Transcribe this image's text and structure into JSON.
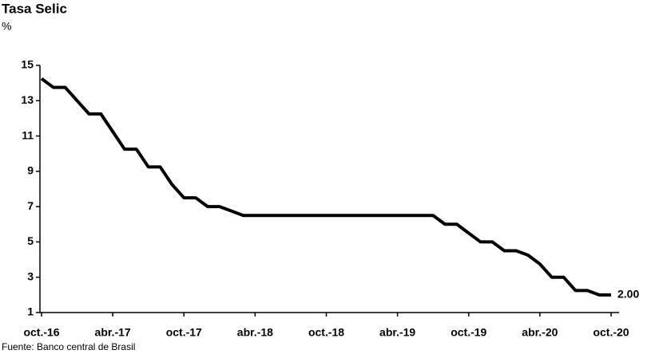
{
  "chart_data": {
    "type": "line",
    "title": "Tasa Selic",
    "y_label": "%",
    "source": "Fuente: Banco central de Brasil",
    "categories": [
      "oct.-16",
      null,
      null,
      null,
      null,
      null,
      "abr.-17",
      null,
      null,
      null,
      null,
      null,
      "oct.-17",
      null,
      null,
      null,
      null,
      null,
      "abr.-18",
      null,
      null,
      null,
      null,
      null,
      "oct.-18",
      null,
      null,
      null,
      null,
      null,
      "abr.-19",
      null,
      null,
      null,
      null,
      null,
      "oct.-19",
      null,
      null,
      null,
      null,
      null,
      "abr.-20",
      null,
      null,
      null,
      null,
      null,
      "oct.-20"
    ],
    "series": [
      {
        "name": "Tasa Selic",
        "color": "#000000",
        "values": [
          14.25,
          13.75,
          13.75,
          13.0,
          12.25,
          12.25,
          11.25,
          10.25,
          10.25,
          9.25,
          9.25,
          8.25,
          7.5,
          7.5,
          7.0,
          7.0,
          6.75,
          6.5,
          6.5,
          6.5,
          6.5,
          6.5,
          6.5,
          6.5,
          6.5,
          6.5,
          6.5,
          6.5,
          6.5,
          6.5,
          6.5,
          6.5,
          6.5,
          6.5,
          6.0,
          6.0,
          5.5,
          5.0,
          5.0,
          4.5,
          4.5,
          4.25,
          3.75,
          3.0,
          3.0,
          2.25,
          2.25,
          2.0,
          2.0
        ],
        "value_labels": [
          null,
          null,
          null,
          null,
          null,
          null,
          null,
          null,
          null,
          null,
          null,
          null,
          null,
          null,
          null,
          null,
          null,
          null,
          null,
          null,
          null,
          null,
          null,
          null,
          null,
          null,
          null,
          null,
          null,
          null,
          null,
          null,
          null,
          null,
          null,
          null,
          null,
          null,
          null,
          null,
          null,
          null,
          null,
          null,
          null,
          null,
          null,
          null,
          "2.00"
        ]
      }
    ],
    "ylim": [
      1,
      15
    ],
    "yticks": [
      1,
      3,
      5,
      7,
      9,
      11,
      13,
      15
    ]
  }
}
